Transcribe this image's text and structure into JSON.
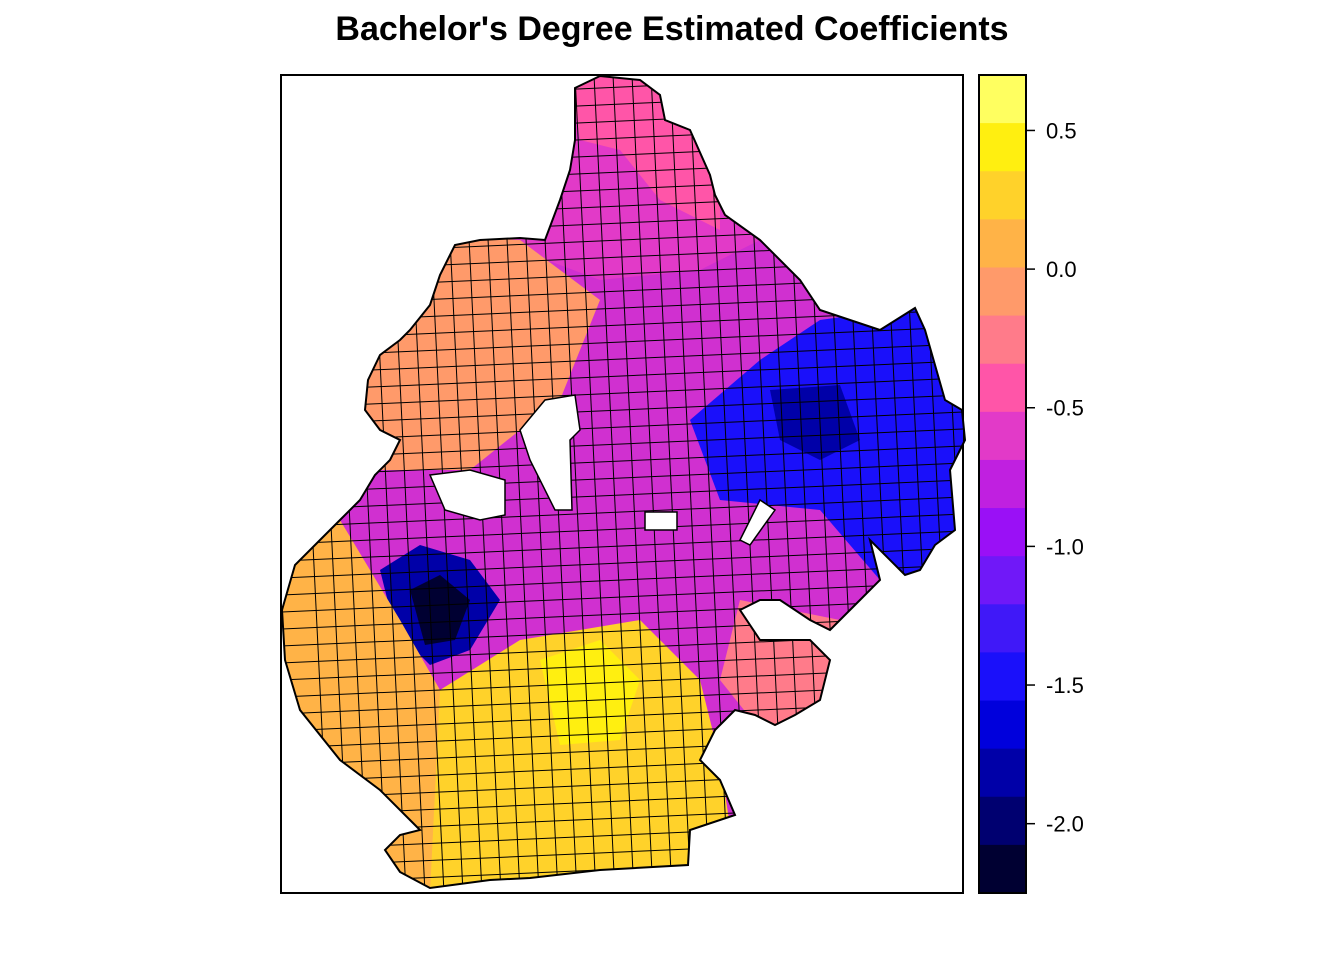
{
  "title": "Bachelor's Degree Estimated Coefficients",
  "legend": {
    "min": -2.25,
    "max": 0.7,
    "tick_values": [
      0.5,
      0.0,
      -0.5,
      -1.0,
      -1.5,
      -2.0
    ],
    "tick_labels": [
      "0.5",
      "0.0",
      "-0.5",
      "-1.0",
      "-1.5",
      "-2.0"
    ],
    "colors": [
      "#ffff60",
      "#ffef10",
      "#ffd22a",
      "#ffb347",
      "#ff9a6a",
      "#ff7b8a",
      "#ff55a8",
      "#e23ac8",
      "#c020e0",
      "#9a10f6",
      "#7018f8",
      "#4018f8",
      "#1a10fa",
      "#0000dc",
      "#0000a8",
      "#000070",
      "#000032"
    ]
  },
  "map": {
    "region_colors": {
      "north": "#e23ac8",
      "north_tip": "#ff55a8",
      "west_coast": "#ff9a6a",
      "center_magenta": "#d030d0",
      "east_blue": "#1a10fa",
      "east_dark": "#0000a8",
      "center_dark": "#0000a8",
      "center_darkest": "#000032",
      "southwest": "#ffb347",
      "south": "#ffd22a",
      "south_yellow": "#ffef10",
      "southeast": "#ff7b8a"
    }
  }
}
